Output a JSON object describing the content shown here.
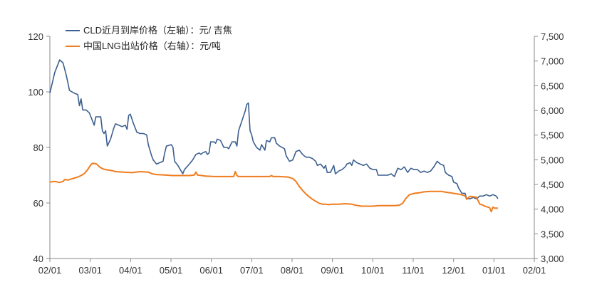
{
  "chart_data": {
    "type": "line",
    "x_ticks": [
      "02/01",
      "03/01",
      "04/01",
      "05/01",
      "06/01",
      "07/01",
      "08/01",
      "09/01",
      "10/01",
      "11/01",
      "12/01",
      "01/01",
      "02/01"
    ],
    "y_left_ticks": [
      "40",
      "60",
      "80",
      "100",
      "120"
    ],
    "y_left_range": [
      40,
      120
    ],
    "y_right_ticks": [
      "3,000",
      "3,500",
      "4,000",
      "4,500",
      "5,000",
      "5,500",
      "6,000",
      "6,500",
      "7,000",
      "7,500"
    ],
    "y_right_range": [
      3000,
      7500
    ],
    "colors": {
      "series1": "#3c5f8f",
      "series2": "#f07c1e",
      "axis": "#8a8a8a"
    },
    "series": [
      {
        "name": "CLD近月到岸价格（左轴）：元/ 吉焦",
        "axis": "left",
        "points": [
          [
            0,
            99.5
          ],
          [
            3,
            107
          ],
          [
            6,
            111.5
          ],
          [
            8,
            110.5
          ],
          [
            10,
            106
          ],
          [
            12,
            100.5
          ],
          [
            15,
            99.5
          ],
          [
            17,
            99
          ],
          [
            18,
            95
          ],
          [
            19,
            97.5
          ],
          [
            20,
            93.5
          ],
          [
            22,
            93.5
          ],
          [
            24,
            92.5
          ],
          [
            26,
            89.5
          ],
          [
            27,
            88
          ],
          [
            28,
            91
          ],
          [
            31,
            91
          ],
          [
            32,
            86
          ],
          [
            33,
            85
          ],
          [
            34,
            86
          ],
          [
            35,
            80.5
          ],
          [
            37,
            83
          ],
          [
            39,
            87
          ],
          [
            40,
            88.5
          ],
          [
            42,
            88
          ],
          [
            44,
            87.5
          ],
          [
            46,
            88
          ],
          [
            47,
            86.5
          ],
          [
            48,
            91.5
          ],
          [
            49,
            92
          ],
          [
            51,
            88.5
          ],
          [
            53,
            85.5
          ],
          [
            55,
            85
          ],
          [
            57,
            85
          ],
          [
            59,
            84.5
          ],
          [
            60,
            81
          ],
          [
            62,
            77
          ],
          [
            63,
            75.5
          ],
          [
            65,
            74
          ],
          [
            67,
            74.5
          ],
          [
            69,
            75
          ],
          [
            70,
            78
          ],
          [
            71,
            80.5
          ],
          [
            74,
            81
          ],
          [
            75,
            80
          ],
          [
            76,
            75
          ],
          [
            78,
            73.5
          ],
          [
            80,
            71.5
          ],
          [
            81,
            70.5
          ],
          [
            82,
            72
          ],
          [
            85,
            74
          ],
          [
            87,
            75.5
          ],
          [
            89,
            77.5
          ],
          [
            91,
            78
          ],
          [
            92,
            77.5
          ],
          [
            93,
            78
          ],
          [
            95,
            78.5
          ],
          [
            96,
            77.5
          ],
          [
            97,
            78
          ],
          [
            98,
            82
          ],
          [
            100,
            82
          ],
          [
            101,
            81.5
          ],
          [
            102,
            83
          ],
          [
            104,
            82.5
          ],
          [
            106,
            80
          ],
          [
            108,
            80
          ],
          [
            109,
            79.5
          ],
          [
            111,
            82
          ],
          [
            113,
            82
          ],
          [
            114,
            80.5
          ],
          [
            115,
            86
          ],
          [
            117,
            89.5
          ],
          [
            119,
            93
          ],
          [
            120,
            95.5
          ],
          [
            121,
            96
          ],
          [
            122,
            86
          ],
          [
            123,
            84.5
          ],
          [
            124,
            82
          ],
          [
            126,
            80
          ],
          [
            128,
            79
          ],
          [
            129,
            81
          ],
          [
            131,
            79
          ],
          [
            132,
            82.5
          ],
          [
            134,
            82
          ],
          [
            135,
            83.5
          ],
          [
            137,
            83.5
          ],
          [
            138,
            81.5
          ],
          [
            140,
            80.5
          ],
          [
            143,
            79.5
          ],
          [
            144,
            77
          ],
          [
            146,
            75
          ],
          [
            148,
            75.5
          ],
          [
            150,
            78.5
          ],
          [
            152,
            79
          ],
          [
            154,
            77.5
          ],
          [
            156,
            76.5
          ],
          [
            158,
            76.5
          ],
          [
            160,
            76
          ],
          [
            162,
            75
          ],
          [
            163,
            73.5
          ],
          [
            165,
            74
          ],
          [
            167,
            72.5
          ],
          [
            168,
            73.5
          ],
          [
            169,
            71
          ],
          [
            171,
            71
          ],
          [
            173,
            73.5
          ],
          [
            174,
            70.5
          ],
          [
            176,
            71.5
          ],
          [
            178,
            72
          ],
          [
            180,
            73
          ],
          [
            181,
            74
          ],
          [
            183,
            74.5
          ],
          [
            184,
            73.5
          ],
          [
            185,
            75.5
          ],
          [
            187,
            74.5
          ],
          [
            189,
            74
          ],
          [
            191,
            73.5
          ],
          [
            193,
            74
          ],
          [
            195,
            72.5
          ],
          [
            197,
            72
          ],
          [
            199,
            72
          ],
          [
            200,
            70
          ],
          [
            203,
            70
          ],
          [
            206,
            70
          ],
          [
            208,
            70.5
          ],
          [
            210,
            69.5
          ],
          [
            212,
            72.5
          ],
          [
            214,
            72
          ],
          [
            216,
            73
          ],
          [
            218,
            71
          ],
          [
            220,
            72.5
          ],
          [
            222,
            72
          ],
          [
            224,
            72
          ],
          [
            226,
            71
          ],
          [
            228,
            71.5
          ],
          [
            230,
            71
          ],
          [
            232,
            71.5
          ],
          [
            234,
            73
          ],
          [
            236,
            75
          ],
          [
            238,
            74
          ],
          [
            240,
            73.5
          ],
          [
            241,
            71
          ],
          [
            243,
            70
          ],
          [
            245,
            69.5
          ],
          [
            246,
            67.5
          ],
          [
            248,
            67
          ],
          [
            249,
            65.5
          ],
          [
            250,
            64.5
          ],
          [
            251,
            63.5
          ],
          [
            252,
            63.5
          ],
          [
            253,
            63.5
          ],
          [
            254,
            61.5
          ],
          [
            256,
            61.5
          ],
          [
            258,
            62
          ],
          [
            260,
            61.5
          ],
          [
            262,
            62.5
          ],
          [
            264,
            62.5
          ],
          [
            266,
            63
          ],
          [
            268,
            62.5
          ],
          [
            270,
            63
          ],
          [
            272,
            62.5
          ],
          [
            273,
            61.5
          ]
        ]
      },
      {
        "name": "中国LNG出站价格（右轴）：元/吨",
        "axis": "right",
        "points": [
          [
            0,
            4550
          ],
          [
            3,
            4560
          ],
          [
            6,
            4540
          ],
          [
            8,
            4560
          ],
          [
            9,
            4600
          ],
          [
            11,
            4590
          ],
          [
            13,
            4610
          ],
          [
            15,
            4630
          ],
          [
            17,
            4650
          ],
          [
            19,
            4680
          ],
          [
            20,
            4700
          ],
          [
            21,
            4720
          ],
          [
            22,
            4760
          ],
          [
            23,
            4800
          ],
          [
            24,
            4850
          ],
          [
            25,
            4900
          ],
          [
            26,
            4930
          ],
          [
            28,
            4920
          ],
          [
            29,
            4900
          ],
          [
            30,
            4860
          ],
          [
            32,
            4820
          ],
          [
            34,
            4800
          ],
          [
            36,
            4790
          ],
          [
            38,
            4780
          ],
          [
            40,
            4760
          ],
          [
            45,
            4750
          ],
          [
            50,
            4740
          ],
          [
            55,
            4760
          ],
          [
            60,
            4750
          ],
          [
            62,
            4720
          ],
          [
            63,
            4710
          ],
          [
            65,
            4700
          ],
          [
            70,
            4690
          ],
          [
            75,
            4680
          ],
          [
            80,
            4680
          ],
          [
            83,
            4680
          ],
          [
            85,
            4680
          ],
          [
            88,
            4690
          ],
          [
            89,
            4750
          ],
          [
            90,
            4690
          ],
          [
            95,
            4670
          ],
          [
            100,
            4660
          ],
          [
            105,
            4660
          ],
          [
            110,
            4660
          ],
          [
            112,
            4660
          ],
          [
            113,
            4760
          ],
          [
            114,
            4680
          ],
          [
            115,
            4660
          ],
          [
            120,
            4660
          ],
          [
            125,
            4660
          ],
          [
            130,
            4660
          ],
          [
            134,
            4660
          ],
          [
            135,
            4680
          ],
          [
            136,
            4660
          ],
          [
            140,
            4660
          ],
          [
            145,
            4650
          ],
          [
            148,
            4620
          ],
          [
            150,
            4560
          ],
          [
            152,
            4460
          ],
          [
            154,
            4380
          ],
          [
            156,
            4310
          ],
          [
            158,
            4250
          ],
          [
            160,
            4200
          ],
          [
            162,
            4160
          ],
          [
            164,
            4120
          ],
          [
            166,
            4100
          ],
          [
            168,
            4100
          ],
          [
            170,
            4090
          ],
          [
            172,
            4100
          ],
          [
            176,
            4100
          ],
          [
            180,
            4110
          ],
          [
            184,
            4100
          ],
          [
            186,
            4080
          ],
          [
            188,
            4070
          ],
          [
            190,
            4060
          ],
          [
            193,
            4060
          ],
          [
            197,
            4060
          ],
          [
            200,
            4070
          ],
          [
            205,
            4070
          ],
          [
            210,
            4070
          ],
          [
            213,
            4080
          ],
          [
            215,
            4120
          ],
          [
            217,
            4220
          ],
          [
            219,
            4290
          ],
          [
            222,
            4320
          ],
          [
            225,
            4330
          ],
          [
            228,
            4350
          ],
          [
            232,
            4360
          ],
          [
            236,
            4360
          ],
          [
            239,
            4360
          ],
          [
            240,
            4350
          ],
          [
            242,
            4340
          ],
          [
            244,
            4330
          ],
          [
            246,
            4320
          ],
          [
            248,
            4310
          ],
          [
            250,
            4300
          ],
          [
            252,
            4280
          ],
          [
            253,
            4270
          ],
          [
            254,
            4200
          ],
          [
            255,
            4230
          ],
          [
            256,
            4260
          ],
          [
            260,
            4240
          ],
          [
            262,
            4100
          ],
          [
            264,
            4080
          ],
          [
            265,
            4060
          ],
          [
            266,
            4050
          ],
          [
            268,
            4030
          ],
          [
            269,
            3950
          ],
          [
            270,
            4040
          ],
          [
            271,
            4020
          ],
          [
            273,
            4020
          ]
        ]
      }
    ]
  }
}
